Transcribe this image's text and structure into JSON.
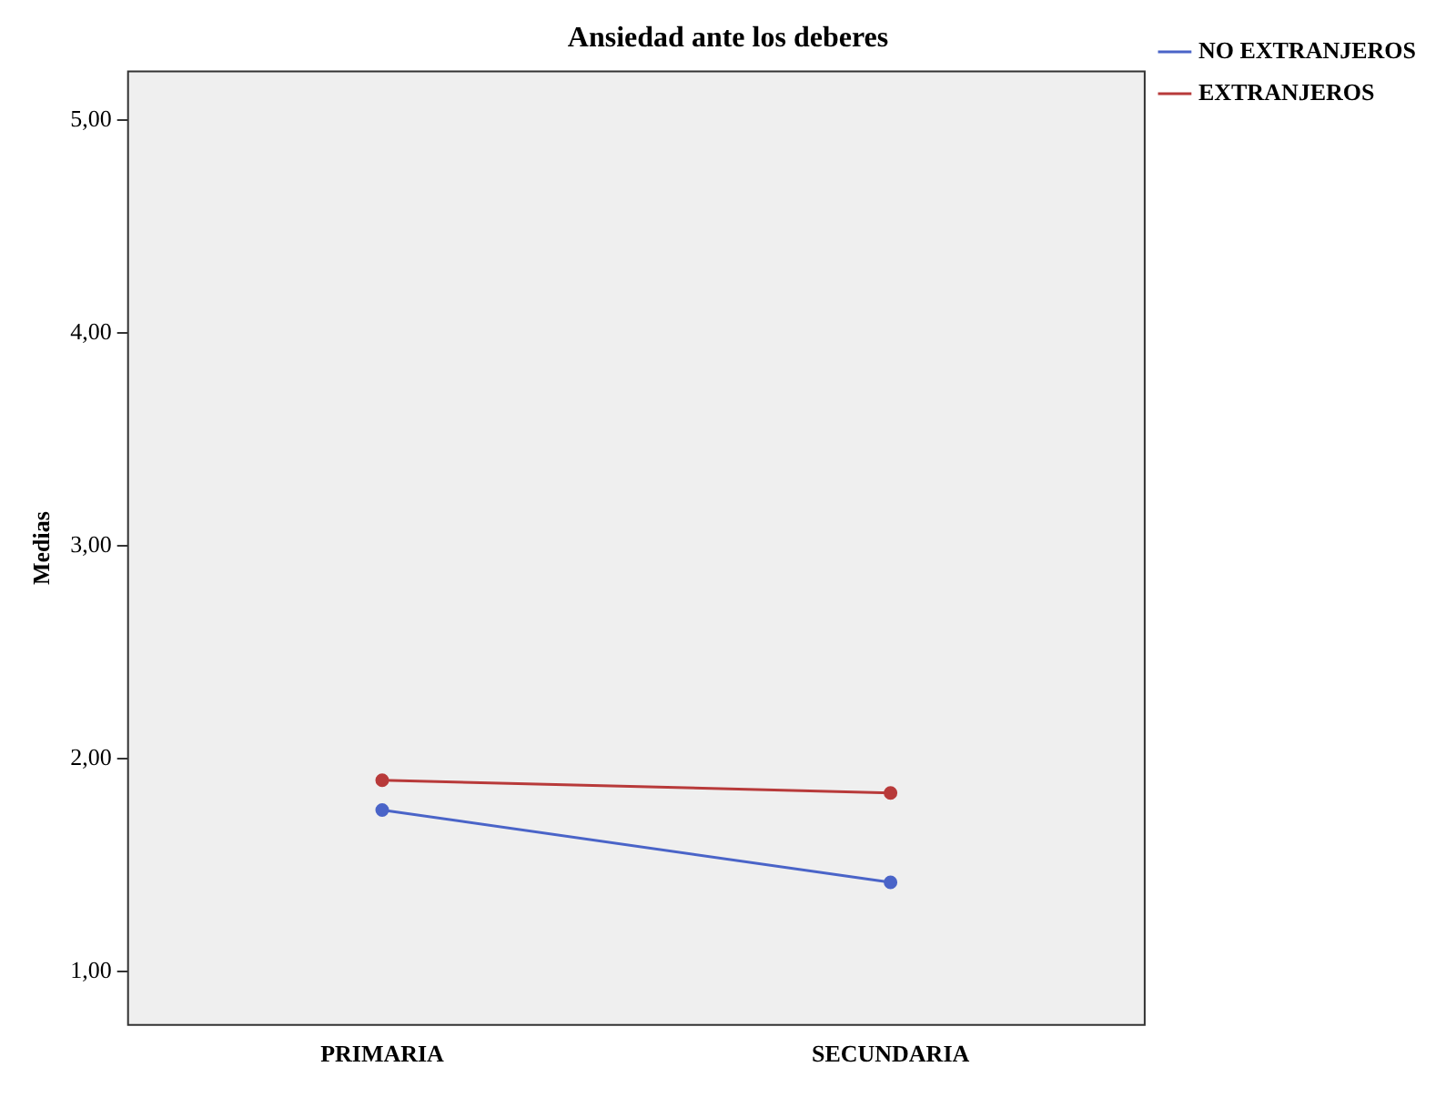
{
  "chart_data": {
    "type": "line",
    "title": "Ansiedad ante los deberes",
    "ylabel": "Medias",
    "categories": [
      "PRIMARIA",
      "SECUNDARIA"
    ],
    "series": [
      {
        "name": "NO EXTRANJEROS",
        "color": "#4a64c8",
        "values": [
          1.76,
          1.42
        ]
      },
      {
        "name": "EXTRANJEROS",
        "color": "#b83a3a",
        "values": [
          1.9,
          1.84
        ]
      }
    ],
    "ylim": [
      0.75,
      5.23
    ],
    "yticks": [
      {
        "value": 1,
        "label": "1,00"
      },
      {
        "value": 2,
        "label": "2,00"
      },
      {
        "value": 3,
        "label": "3,00"
      },
      {
        "value": 4,
        "label": "4,00"
      },
      {
        "value": 5,
        "label": "5,00"
      }
    ],
    "grid": false,
    "legend": "top right",
    "marker": "circle",
    "line_style": "solid"
  }
}
